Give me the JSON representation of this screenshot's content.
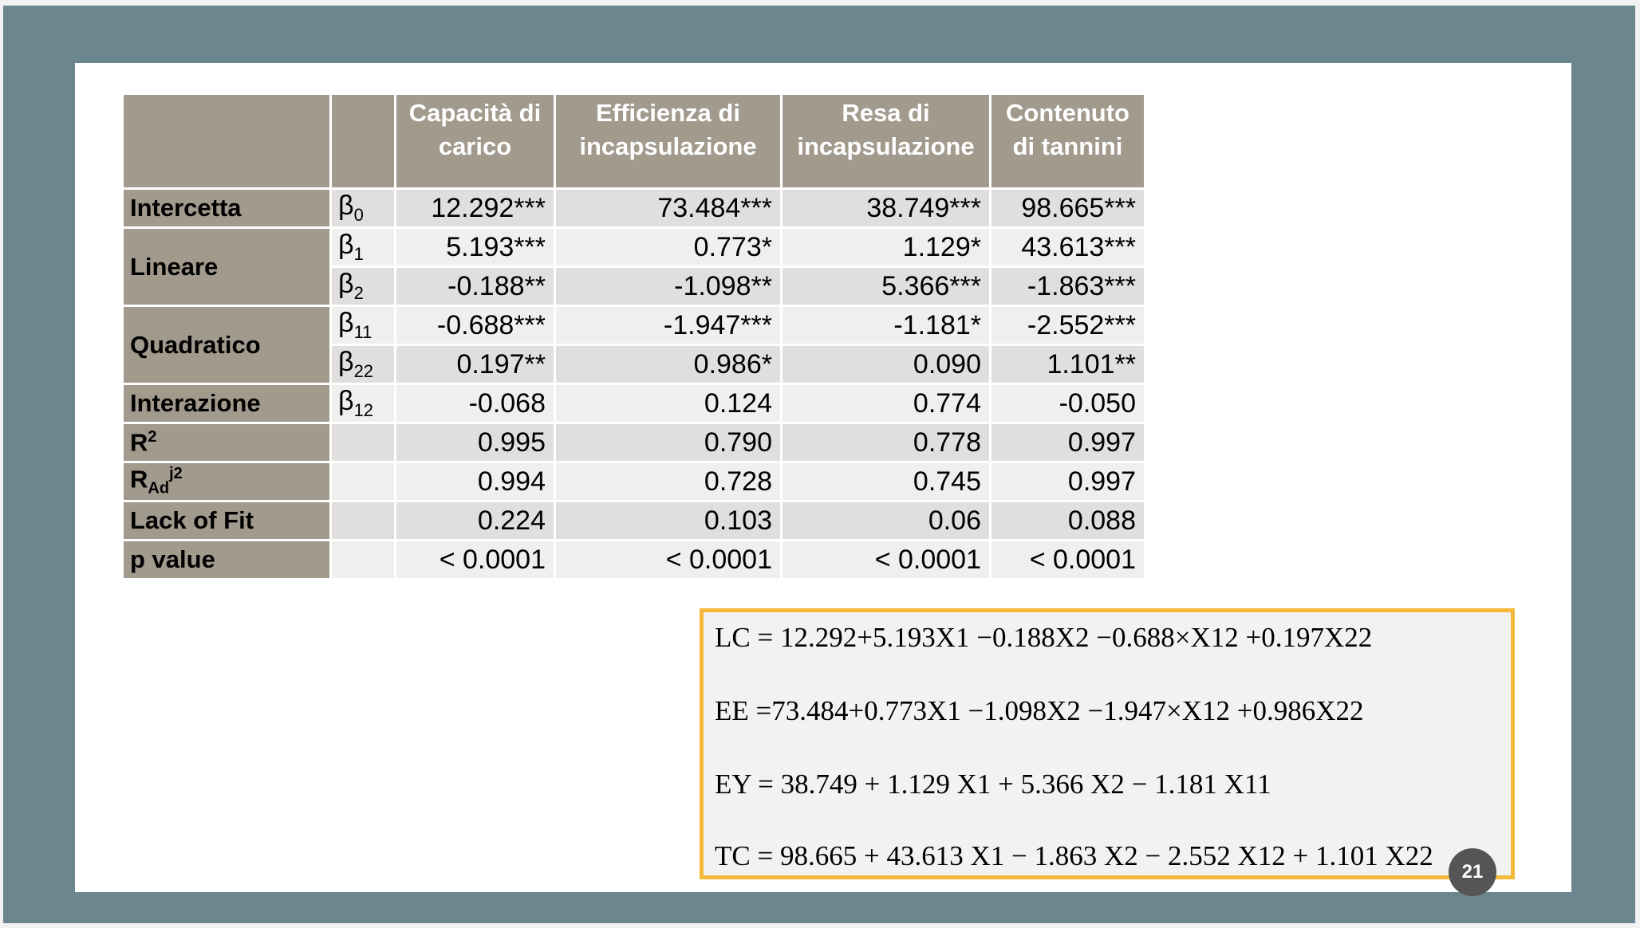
{
  "table": {
    "headers": [
      "",
      "",
      "Capacità di carico",
      "Efficienza di incapsulazione",
      "Resa di incapsulazione",
      "Contenuto di tannini"
    ],
    "rows": [
      {
        "label": "Intercetta",
        "beta": "β0",
        "v": [
          "12.292***",
          "73.484***",
          "38.749***",
          "98.665***"
        ]
      },
      {
        "label": "Lineare",
        "beta": "β1",
        "v": [
          "5.193***",
          "0.773*",
          "1.129*",
          "43.613***"
        ]
      },
      {
        "label": "",
        "beta": "β2",
        "v": [
          "-0.188**",
          "-1.098**",
          "5.366***",
          "-1.863***"
        ]
      },
      {
        "label": "Quadratico",
        "beta": "β11",
        "v": [
          "-0.688***",
          "-1.947***",
          "-1.181*",
          "-2.552***"
        ]
      },
      {
        "label": "",
        "beta": "β22",
        "v": [
          "0.197**",
          "0.986*",
          "0.090",
          "1.101**"
        ]
      },
      {
        "label": "Interazione",
        "beta": "β12",
        "v": [
          "-0.068",
          "0.124",
          "0.774",
          "-0.050"
        ]
      },
      {
        "label": "R2",
        "beta": "",
        "v": [
          "0.995",
          "0.790",
          "0.778",
          "0.997"
        ]
      },
      {
        "label": "RAdj2",
        "beta": "",
        "v": [
          "0.994",
          "0.728",
          "0.745",
          "0.997"
        ]
      },
      {
        "label": "Lack of Fit",
        "beta": "",
        "v": [
          "0.224",
          "0.103",
          "0.06",
          "0.088"
        ]
      },
      {
        "label": "p value",
        "beta": "",
        "v": [
          "< 0.0001",
          "< 0.0001",
          "< 0.0001",
          "< 0.0001"
        ]
      }
    ]
  },
  "equations": {
    "lc": "LC = 12.292+5.193X1 −0.188X2 −0.688×X12 +0.197X22",
    "ee": "EE =73.484+0.773X1 −1.098X2 −1.947×X12 +0.986X22",
    "ey": "EY = 38.749 + 1.129 X1 + 5.366 X2 − 1.181 X11",
    "tc": "TC = 98.665 + 43.613 X1 − 1.863 X2 − 2.552 X12 + 1.101 X22"
  },
  "page_number": "21",
  "colors": {
    "frame": "#6c8690",
    "header_bg": "#a19a8d",
    "row_shade": "#e0dfdd",
    "row_light": "#efefee",
    "eq_border": "#f4b93a"
  }
}
